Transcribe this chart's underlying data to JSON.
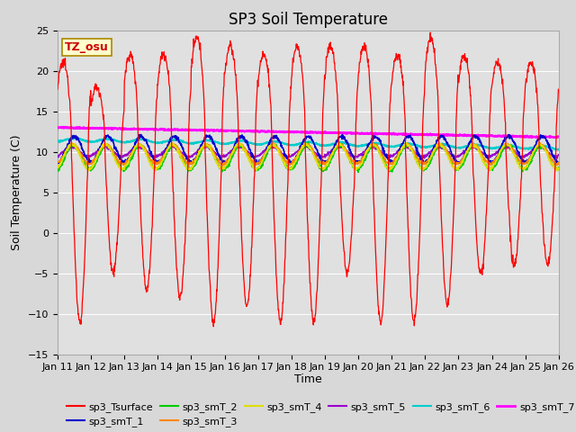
{
  "title": "SP3 Soil Temperature",
  "ylabel": "Soil Temperature (C)",
  "xlabel": "Time",
  "ylim": [
    -15,
    25
  ],
  "yticks": [
    -15,
    -10,
    -5,
    0,
    5,
    10,
    15,
    20,
    25
  ],
  "tz_label": "TZ_osu",
  "fig_bg_color": "#d8d8d8",
  "plot_bg_color": "#e0e0e0",
  "series_colors": {
    "sp3_Tsurface": "#ff0000",
    "sp3_smT_1": "#0000cc",
    "sp3_smT_2": "#00cc00",
    "sp3_smT_3": "#ff8800",
    "sp3_smT_4": "#dddd00",
    "sp3_smT_5": "#9900cc",
    "sp3_smT_6": "#00cccc",
    "sp3_smT_7": "#ff00ff"
  },
  "x_tick_labels": [
    "Jan 11",
    "Jan 12",
    "Jan 13",
    "Jan 14",
    "Jan 15",
    "Jan 16",
    "Jan 17",
    "Jan 18",
    "Jan 19",
    "Jan 20",
    "Jan 21",
    "Jan 22",
    "Jan 23",
    "Jan 24",
    "Jan 25",
    "Jan 26"
  ],
  "n_days": 15,
  "pts_per_day": 96,
  "title_fontsize": 12,
  "tick_fontsize": 8,
  "label_fontsize": 9,
  "legend_fontsize": 8
}
